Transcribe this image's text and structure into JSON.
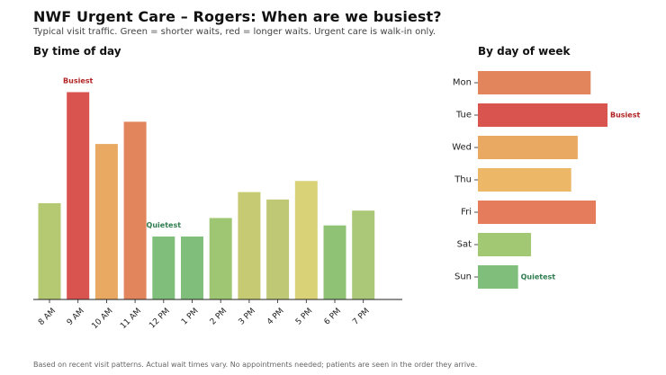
{
  "header": {
    "title": "NWF Urgent Care – Rogers: When are we busiest?",
    "subtitle": "Typical visit traffic. Green = shorter waits, red = longer waits. Urgent care is walk-in only."
  },
  "footnote": "Based on recent visit patterns. Actual wait times vary. No appointments needed; patients are seen in the order they arrive.",
  "chart_data": [
    {
      "type": "bar",
      "title": "By time of day",
      "categories": [
        "8 AM",
        "9 AM",
        "10 AM",
        "11 AM",
        "12 PM",
        "1 PM",
        "2 PM",
        "3 PM",
        "4 PM",
        "5 PM",
        "6 PM",
        "7 PM"
      ],
      "values": [
        52,
        112,
        84,
        96,
        34,
        34,
        44,
        58,
        54,
        64,
        40,
        48
      ],
      "colors": [
        "#b5c872",
        "#d9534f",
        "#e9a962",
        "#e2845c",
        "#7fbf7b",
        "#7fbf7b",
        "#9fc773",
        "#c6cb73",
        "#bfc975",
        "#d9d277",
        "#8fc275",
        "#aac878"
      ],
      "annotations": [
        {
          "category": "9 AM",
          "text": "Busiest",
          "color": "#b22222"
        },
        {
          "category": "12 PM",
          "text": "Quietest",
          "color": "#2e7d4f"
        }
      ],
      "ylim": [
        0,
        120
      ],
      "grid": false
    },
    {
      "type": "bar",
      "orientation": "horizontal",
      "title": "By day of week",
      "categories": [
        "Mon",
        "Tue",
        "Wed",
        "Thu",
        "Fri",
        "Sat",
        "Sun"
      ],
      "values": [
        87,
        100,
        77,
        72,
        91,
        41,
        31
      ],
      "colors": [
        "#e2845c",
        "#d9534f",
        "#e9a962",
        "#ecb867",
        "#e57c5c",
        "#a3c873",
        "#7fbf7b"
      ],
      "annotations": [
        {
          "category": "Tue",
          "text": "Busiest",
          "color": "#b22222"
        },
        {
          "category": "Sun",
          "text": "Quietest",
          "color": "#2e7d4f"
        }
      ],
      "xlim": [
        0,
        100
      ],
      "grid": false
    }
  ]
}
